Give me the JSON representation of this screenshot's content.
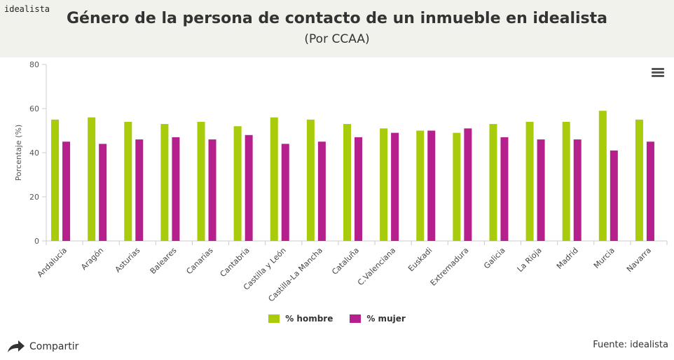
{
  "brand": "idealista",
  "header": {
    "title": "Género de la persona de contacto de un inmueble en idealista",
    "subtitle": "(Por CCAA)"
  },
  "chart_data": {
    "type": "bar",
    "ylabel": "Porcentaje (%)",
    "ylim": [
      0,
      80
    ],
    "yticks": [
      0,
      20,
      40,
      60,
      80
    ],
    "categories": [
      "Andalucía",
      "Aragón",
      "Asturias",
      "Baleares",
      "Canarias",
      "Cantabria",
      "Castilla y León",
      "Castilla-La Mancha",
      "Cataluña",
      "C.Valenciana",
      "Euskadi",
      "Extremadura",
      "Galicia",
      "La Rioja",
      "Madrid",
      "Murcia",
      "Navarra"
    ],
    "series": [
      {
        "name": "% hombre",
        "color": "#a8cc0c",
        "values": [
          55,
          56,
          54,
          53,
          54,
          52,
          56,
          55,
          53,
          51,
          50,
          49,
          53,
          54,
          54,
          59,
          55
        ]
      },
      {
        "name": "% mujer",
        "color": "#b5208c",
        "values": [
          45,
          44,
          46,
          47,
          46,
          48,
          44,
          45,
          47,
          49,
          50,
          51,
          47,
          46,
          46,
          41,
          45
        ]
      }
    ],
    "grid": false,
    "legend": "bottom-center"
  },
  "footer": {
    "share_label": "Compartir",
    "source": "Fuente: idealista"
  }
}
